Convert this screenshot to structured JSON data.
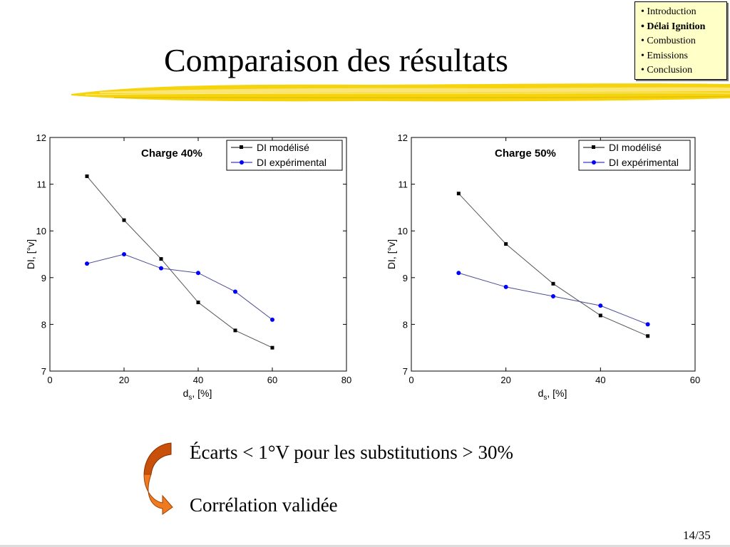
{
  "slide": {
    "title": "Comparaison des résultats",
    "page": "14/35"
  },
  "nav": {
    "items": [
      {
        "label": "• Introduction",
        "active": false
      },
      {
        "label": "• Délai Ignition",
        "active": true
      },
      {
        "label": "• Combustion",
        "active": false
      },
      {
        "label": "• Emissions",
        "active": false
      },
      {
        "label": "• Conclusion",
        "active": false
      }
    ]
  },
  "notes": {
    "line1": "Écarts < 1°V pour les substitutions > 30%",
    "line2": "Corrélation validée"
  },
  "colors": {
    "accent_yellow": "#f5d200",
    "arrow_dark": "#c8500a",
    "arrow_light": "#f07a20",
    "series_model": "#000000",
    "series_exp": "#0000ff",
    "nav_bg": "#ffffc8"
  },
  "chart_data": [
    {
      "type": "line",
      "annotation": "Charge 40%",
      "xlabel": "ds, [%]",
      "ylabel": "DI, [°v]",
      "xlim": [
        0,
        80
      ],
      "ylim": [
        7,
        12
      ],
      "xticks": [
        0,
        20,
        40,
        60,
        80
      ],
      "yticks": [
        7,
        8,
        9,
        10,
        11,
        12
      ],
      "grid": false,
      "legend_position": "top-right",
      "series": [
        {
          "name": "DI modélisé",
          "marker": "square",
          "color": "#000000",
          "x": [
            10,
            20,
            30,
            40,
            50,
            60
          ],
          "y": [
            11.17,
            10.23,
            9.4,
            8.47,
            7.87,
            7.5
          ]
        },
        {
          "name": "DI expérimental",
          "marker": "circle",
          "color": "#0000ff",
          "x": [
            10,
            20,
            30,
            40,
            50,
            60
          ],
          "y": [
            9.3,
            9.5,
            9.2,
            9.1,
            8.7,
            8.1
          ]
        }
      ]
    },
    {
      "type": "line",
      "annotation": "Charge 50%",
      "xlabel": "ds, [%]",
      "ylabel": "DI, [°v]",
      "xlim": [
        0,
        60
      ],
      "ylim": [
        7,
        12
      ],
      "xticks": [
        0,
        20,
        40,
        60
      ],
      "yticks": [
        7,
        8,
        9,
        10,
        11,
        12
      ],
      "grid": false,
      "legend_position": "top-right",
      "series": [
        {
          "name": "DI modélisé",
          "marker": "square",
          "color": "#000000",
          "x": [
            10,
            20,
            30,
            40,
            50
          ],
          "y": [
            10.8,
            9.72,
            8.87,
            8.19,
            7.75
          ]
        },
        {
          "name": "DI expérimental",
          "marker": "circle",
          "color": "#0000ff",
          "x": [
            10,
            20,
            30,
            40,
            50
          ],
          "y": [
            9.1,
            8.8,
            8.6,
            8.4,
            8.0
          ]
        }
      ]
    }
  ]
}
